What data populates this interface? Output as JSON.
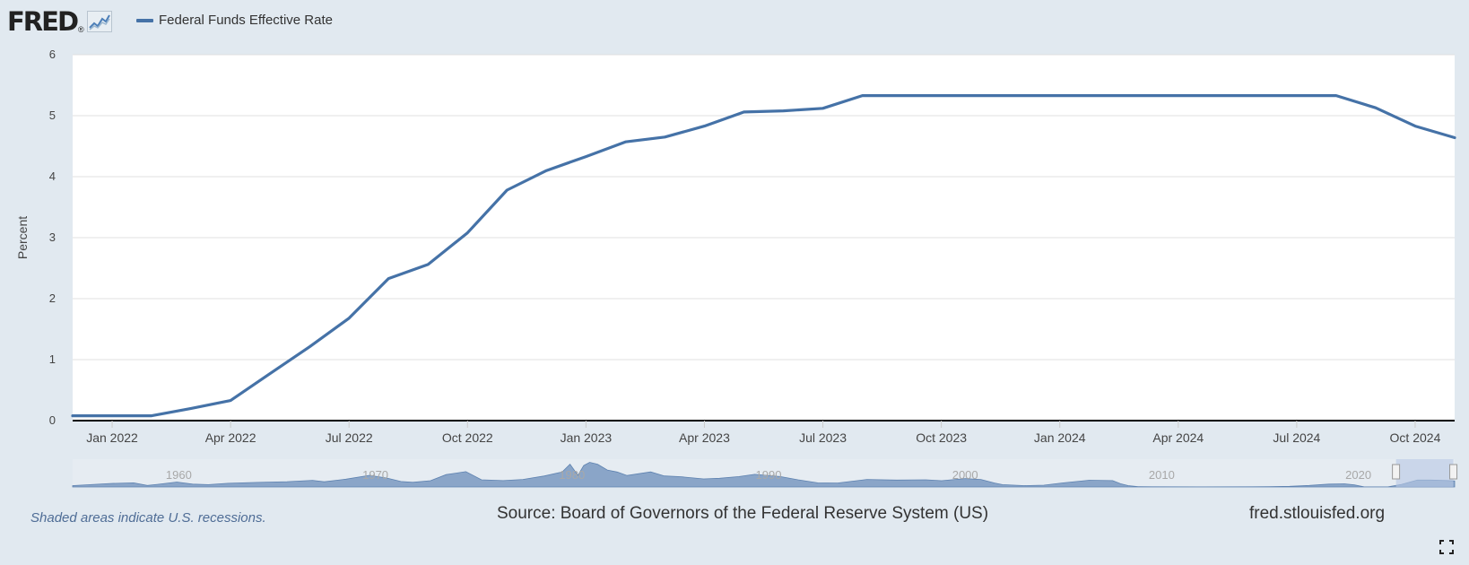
{
  "header": {
    "logo_text": "FRED",
    "logo_mark": "®",
    "logo_icon": "line-graph-icon"
  },
  "legend": {
    "series_name": "Federal Funds Effective Rate",
    "swatch_color": "#4572a7"
  },
  "footer": {
    "recession_note": "Shaded areas indicate U.S. recessions.",
    "source": "Source: Board of Governors of the Federal Reserve System (US)",
    "site": "fred.stlouisfed.org",
    "fullscreen_icon": "fullscreen-icon"
  },
  "colors": {
    "background": "#e1e9f0",
    "plot_background": "#ffffff",
    "series": "#4572a7",
    "navigator_fill": "#8aa5c8",
    "navigator_selection": "#b7c8e4"
  },
  "chart_data": {
    "type": "line",
    "ylabel": "Percent",
    "xlabel": "",
    "ylim": [
      0,
      6
    ],
    "yticks": [
      0,
      1,
      2,
      3,
      4,
      5,
      6
    ],
    "xlim": [
      "2021-12",
      "2024-11"
    ],
    "xticks": [
      "Jan 2022",
      "Apr 2022",
      "Jul 2022",
      "Oct 2022",
      "Jan 2023",
      "Apr 2023",
      "Jul 2023",
      "Oct 2023",
      "Jan 2024",
      "Apr 2024",
      "Jul 2024",
      "Oct 2024"
    ],
    "grid": true,
    "legend_position": "top-left",
    "series": [
      {
        "name": "Federal Funds Effective Rate",
        "x": [
          "2021-12",
          "2022-01",
          "2022-02",
          "2022-03",
          "2022-04",
          "2022-05",
          "2022-06",
          "2022-07",
          "2022-08",
          "2022-09",
          "2022-10",
          "2022-11",
          "2022-12",
          "2023-01",
          "2023-02",
          "2023-03",
          "2023-04",
          "2023-05",
          "2023-06",
          "2023-07",
          "2023-08",
          "2023-09",
          "2023-10",
          "2023-11",
          "2023-12",
          "2024-01",
          "2024-02",
          "2024-03",
          "2024-04",
          "2024-05",
          "2024-06",
          "2024-07",
          "2024-08",
          "2024-09",
          "2024-10",
          "2024-11"
        ],
        "values": [
          0.08,
          0.08,
          0.08,
          0.2,
          0.33,
          0.77,
          1.21,
          1.68,
          2.33,
          2.56,
          3.08,
          3.78,
          4.1,
          4.33,
          4.57,
          4.65,
          4.83,
          5.06,
          5.08,
          5.12,
          5.33,
          5.33,
          5.33,
          5.33,
          5.33,
          5.33,
          5.33,
          5.33,
          5.33,
          5.33,
          5.33,
          5.33,
          5.33,
          5.13,
          4.83,
          4.64
        ]
      }
    ]
  },
  "navigator": {
    "type": "area",
    "x_labels": [
      "1960",
      "1970",
      "1980",
      "1990",
      "2000",
      "2010",
      "2020"
    ],
    "xlim": [
      1954.6,
      2024.9
    ],
    "selection": [
      "2021-12",
      "2024-11"
    ],
    "x": [
      1954.6,
      1955.5,
      1956.5,
      1957.7,
      1958.4,
      1958.9,
      1959.9,
      1960.7,
      1961.5,
      1962.5,
      1964,
      1965.5,
      1966.8,
      1967.4,
      1968.5,
      1969.7,
      1970.6,
      1971.3,
      1971.9,
      1972.8,
      1973.6,
      1974.6,
      1975.4,
      1976.5,
      1977.5,
      1978.6,
      1979.5,
      1979.9,
      1980.3,
      1980.6,
      1980.9,
      1981.3,
      1981.8,
      1982.3,
      1982.8,
      1984.0,
      1984.7,
      1985.5,
      1986.7,
      1987.5,
      1988.5,
      1989.3,
      1990.6,
      1991.5,
      1992.5,
      1993.5,
      1995.0,
      1996.5,
      1998.0,
      1998.8,
      2000.0,
      2000.8,
      2001.5,
      2001.9,
      2003.0,
      2004.0,
      2005.0,
      2006.3,
      2007.5,
      2007.9,
      2008.3,
      2008.8,
      2009.5,
      2012,
      2015.5,
      2016.5,
      2017.5,
      2018.5,
      2019.3,
      2019.8,
      2020.3,
      2021.5,
      2022.2,
      2023.0,
      2023.7,
      2024.5,
      2024.9
    ],
    "values": [
      1.0,
      1.8,
      2.7,
      3.2,
      1.2,
      2.0,
      3.8,
      2.2,
      1.8,
      2.8,
      3.5,
      4.1,
      5.1,
      4.0,
      6.0,
      9.0,
      6.8,
      4.2,
      3.6,
      4.8,
      9.5,
      11.8,
      5.5,
      4.9,
      5.8,
      8.5,
      11.5,
      17.5,
      9.0,
      16.5,
      19.0,
      17.5,
      13.0,
      11.5,
      8.8,
      11.6,
      8.5,
      7.9,
      6.2,
      6.7,
      8.0,
      9.7,
      8.0,
      5.5,
      3.2,
      3.0,
      5.8,
      5.3,
      5.5,
      4.8,
      6.5,
      5.8,
      3.0,
      1.8,
      1.0,
      1.4,
      3.2,
      5.2,
      4.9,
      2.5,
      1.0,
      0.2,
      0.15,
      0.1,
      0.2,
      0.5,
      1.2,
      2.2,
      2.4,
      1.6,
      0.1,
      0.08,
      2.0,
      5.33,
      5.33,
      5.0,
      4.64
    ]
  }
}
